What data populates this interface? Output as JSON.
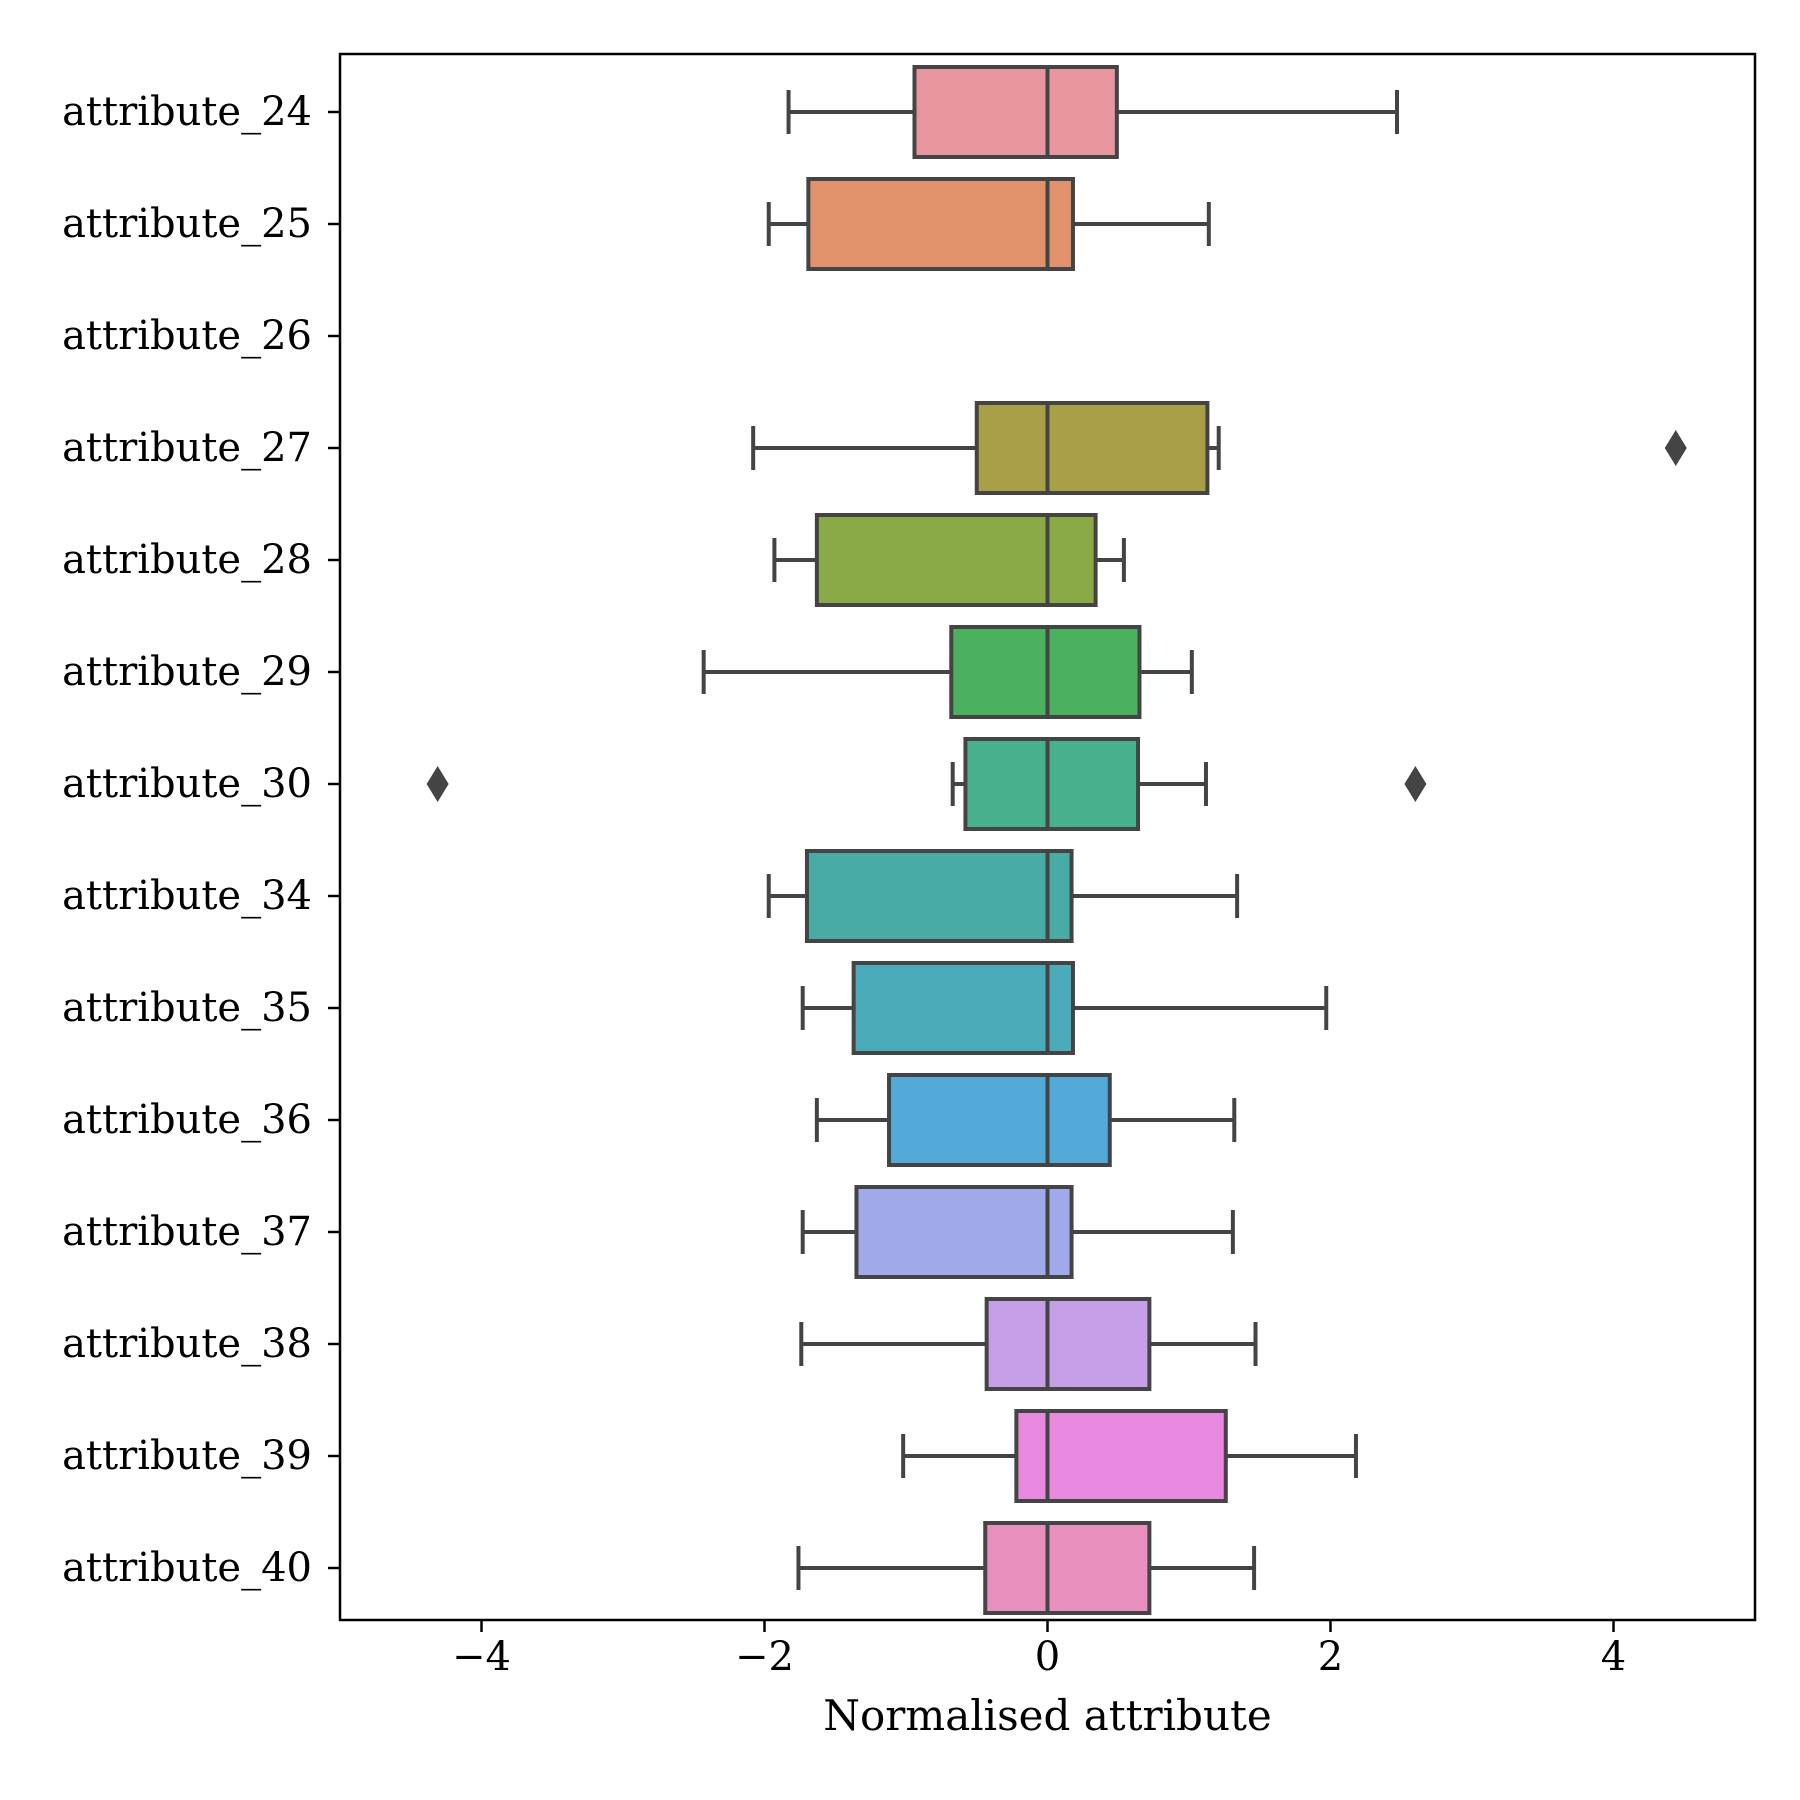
{
  "chart_data": {
    "type": "box",
    "orientation": "horizontal",
    "title": "",
    "xlabel": "Normalised attribute",
    "ylabel": "",
    "xlim": [
      -5,
      5
    ],
    "xticks": [
      -4,
      -2,
      0,
      2,
      4
    ],
    "xtick_labels": [
      "−4",
      "−2",
      "0",
      "2",
      "4"
    ],
    "grid": false,
    "legend": "none",
    "line_color": "#444444",
    "categories": [
      "attribute_24",
      "attribute_25",
      "attribute_26",
      "attribute_27",
      "attribute_28",
      "attribute_29",
      "attribute_30",
      "attribute_34",
      "attribute_35",
      "attribute_36",
      "attribute_37",
      "attribute_38",
      "attribute_39",
      "attribute_40"
    ],
    "boxes": [
      {
        "label": "attribute_24",
        "color": "#e8959f",
        "whislo": -1.83,
        "q1": -0.94,
        "med": 0.0,
        "q3": 0.49,
        "whishi": 2.47,
        "fliers": []
      },
      {
        "label": "attribute_25",
        "color": "#e2926a",
        "whislo": -1.97,
        "q1": -1.69,
        "med": 0.0,
        "q3": 0.18,
        "whishi": 1.14,
        "fliers": []
      },
      {
        "label": "attribute_26",
        "color": "#c99d5b",
        "fliers": []
      },
      {
        "label": "attribute_27",
        "color": "#a89f47",
        "whislo": -2.08,
        "q1": -0.5,
        "med": 0.0,
        "q3": 1.13,
        "whishi": 1.21,
        "fliers": [
          4.44
        ]
      },
      {
        "label": "attribute_28",
        "color": "#8aaa47",
        "whislo": -1.93,
        "q1": -1.63,
        "med": 0.0,
        "q3": 0.34,
        "whishi": 0.54,
        "fliers": []
      },
      {
        "label": "attribute_29",
        "color": "#4bb15e",
        "whislo": -2.43,
        "q1": -0.68,
        "med": 0.0,
        "q3": 0.65,
        "whishi": 1.02,
        "fliers": []
      },
      {
        "label": "attribute_30",
        "color": "#47b18e",
        "whislo": -0.67,
        "q1": -0.58,
        "med": 0.0,
        "q3": 0.64,
        "whishi": 1.12,
        "fliers": [
          -4.31,
          2.6
        ]
      },
      {
        "label": "attribute_34",
        "color": "#48aba6",
        "whislo": -1.97,
        "q1": -1.7,
        "med": 0.0,
        "q3": 0.17,
        "whishi": 1.34,
        "fliers": []
      },
      {
        "label": "attribute_35",
        "color": "#4aacbb",
        "whislo": -1.73,
        "q1": -1.37,
        "med": 0.0,
        "q3": 0.18,
        "whishi": 1.97,
        "fliers": []
      },
      {
        "label": "attribute_36",
        "color": "#53aad8",
        "whislo": -1.63,
        "q1": -1.12,
        "med": 0.0,
        "q3": 0.44,
        "whishi": 1.32,
        "fliers": []
      },
      {
        "label": "attribute_37",
        "color": "#a0aaea",
        "whislo": -1.73,
        "q1": -1.35,
        "med": 0.0,
        "q3": 0.17,
        "whishi": 1.31,
        "fliers": []
      },
      {
        "label": "attribute_38",
        "color": "#c79ee8",
        "whislo": -1.74,
        "q1": -0.43,
        "med": 0.0,
        "q3": 0.72,
        "whishi": 1.47,
        "fliers": []
      },
      {
        "label": "attribute_39",
        "color": "#e888de",
        "whislo": -1.02,
        "q1": -0.22,
        "med": 0.0,
        "q3": 1.26,
        "whishi": 2.18,
        "fliers": []
      },
      {
        "label": "attribute_40",
        "color": "#e88fbd",
        "whislo": -1.76,
        "q1": -0.44,
        "med": 0.0,
        "q3": 0.72,
        "whishi": 1.46,
        "fliers": []
      }
    ]
  }
}
